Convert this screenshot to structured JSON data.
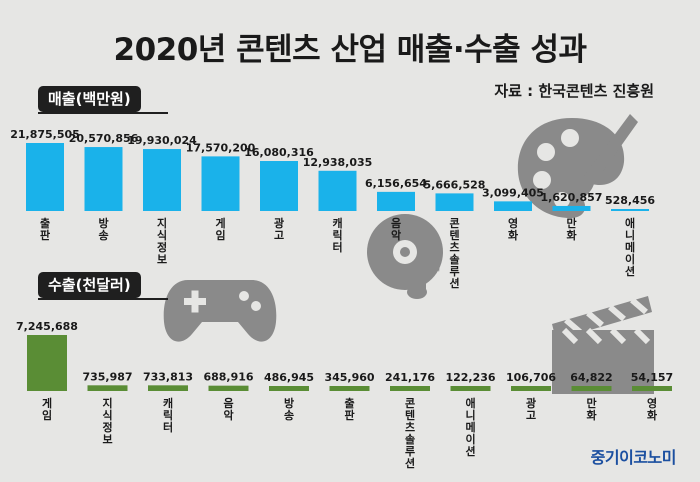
{
  "title": "2020년 콘텐츠 산업 매출·수출 성과",
  "source": "자료 : 한국콘텐츠 진흥원",
  "brand": "중기이코노미",
  "colors": {
    "sales": "#1ab2ea",
    "exports": "#5a8d35",
    "background": "#e6e6e4"
  },
  "icons": [
    "palette-icon",
    "music-disc-icon",
    "game-controller-icon",
    "clapperboard-icon"
  ],
  "chart_data": [
    {
      "type": "bar",
      "title": "매출(백만원)",
      "categories": [
        "출판",
        "방송",
        "지식정보",
        "게임",
        "광고",
        "캐릭터",
        "음악",
        "콘텐츠솔루션",
        "영화",
        "만화",
        "애니메이션"
      ],
      "values": [
        21875505,
        20570856,
        19930024,
        17570200,
        16080316,
        12938035,
        6156654,
        5666528,
        3099405,
        1620857,
        528456
      ],
      "value_labels": [
        "21,875,505",
        "20,570,856",
        "19,930,024",
        "17,570,200",
        "16,080,316",
        "12,938,035",
        "6,156,654",
        "5,666,528",
        "3,099,405",
        "1,620,857",
        "528,456"
      ]
    },
    {
      "type": "bar",
      "title": "수출(천달러)",
      "categories": [
        "게임",
        "지식정보",
        "캐릭터",
        "음악",
        "방송",
        "출판",
        "콘텐츠솔루션",
        "애니메이션",
        "광고",
        "만화",
        "영화"
      ],
      "values": [
        7245688,
        735987,
        733813,
        688916,
        486945,
        345960,
        241176,
        122236,
        106706,
        64822,
        54157
      ],
      "value_labels": [
        "7,245,688",
        "735,987",
        "733,813",
        "688,916",
        "486,945",
        "345,960",
        "241,176",
        "122,236",
        "106,706",
        "64,822",
        "54,157"
      ]
    }
  ]
}
